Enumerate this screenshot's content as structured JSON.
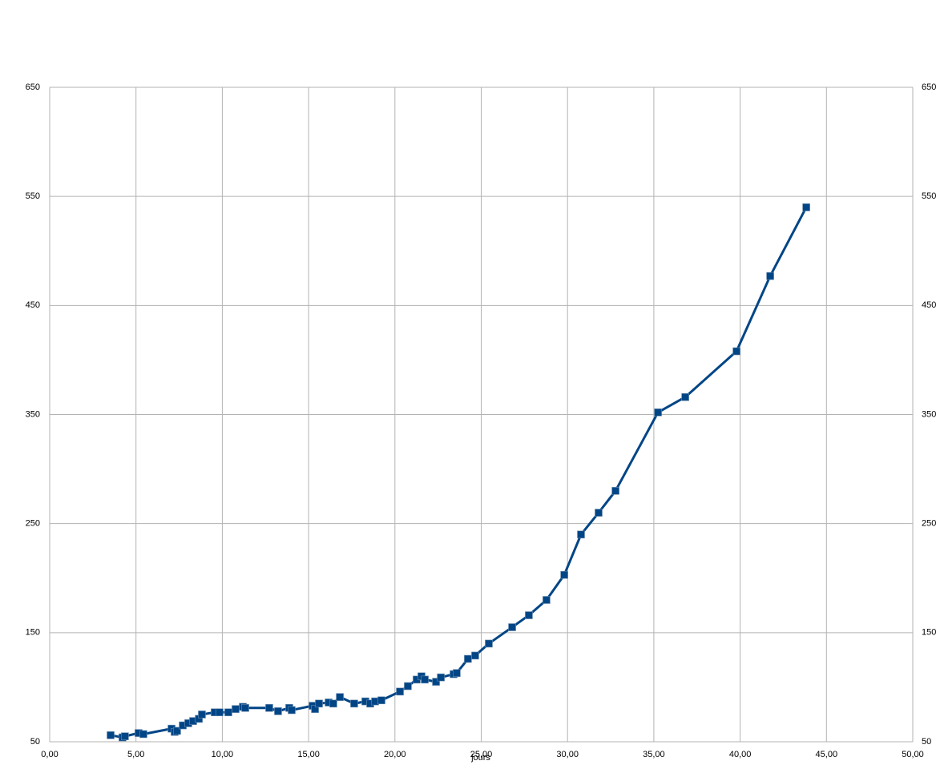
{
  "chart_data": {
    "type": "line",
    "x_label": "jours",
    "x": [
      3.53,
      4.22,
      4.36,
      5.15,
      5.43,
      7.06,
      7.24,
      7.38,
      7.71,
      8.03,
      8.31,
      8.64,
      8.82,
      9.56,
      9.84,
      10.35,
      10.77,
      11.19,
      11.33,
      12.72,
      13.23,
      13.88,
      14.02,
      15.23,
      15.37,
      15.6,
      16.16,
      16.43,
      16.81,
      17.64,
      18.29,
      18.57,
      18.85,
      19.22,
      20.29,
      20.75,
      21.26,
      21.54,
      21.73,
      22.38,
      22.66,
      23.4,
      23.58,
      24.23,
      24.65,
      25.44,
      26.79,
      27.76,
      28.78,
      29.81,
      30.78,
      31.8,
      32.78,
      35.24,
      36.82,
      39.79,
      41.74,
      43.83
    ],
    "series": [
      {
        "color": "#004586",
        "values": [
          56,
          54,
          55,
          58,
          57,
          62,
          59,
          60,
          65,
          67,
          69,
          71,
          75,
          77,
          77,
          77,
          80,
          82,
          81,
          81,
          78,
          81,
          79,
          83,
          80,
          85,
          86,
          85,
          91,
          85,
          87,
          85,
          87,
          88,
          96,
          101,
          107,
          110,
          107,
          105,
          109,
          112,
          113,
          126,
          129,
          140,
          155,
          166,
          180,
          203,
          240,
          260,
          280,
          352,
          366,
          408,
          477,
          540
        ]
      }
    ],
    "xlim": [
      0,
      50
    ],
    "xticks": [
      {
        "value": 0,
        "label": "0,00"
      },
      {
        "value": 5,
        "label": "5,00"
      },
      {
        "value": 10,
        "label": "10,00"
      },
      {
        "value": 15,
        "label": "15,00"
      },
      {
        "value": 20,
        "label": "20,00"
      },
      {
        "value": 25,
        "label": "25,00"
      },
      {
        "value": 30,
        "label": "30,00"
      },
      {
        "value": 35,
        "label": "35,00"
      },
      {
        "value": 40,
        "label": "40,00"
      },
      {
        "value": 45,
        "label": "45,00"
      },
      {
        "value": 50,
        "label": "50,00"
      }
    ],
    "ylim": [
      50,
      650
    ],
    "yticks": [
      50,
      150,
      250,
      350,
      450,
      550,
      650
    ],
    "grid": true,
    "marker": "square"
  }
}
